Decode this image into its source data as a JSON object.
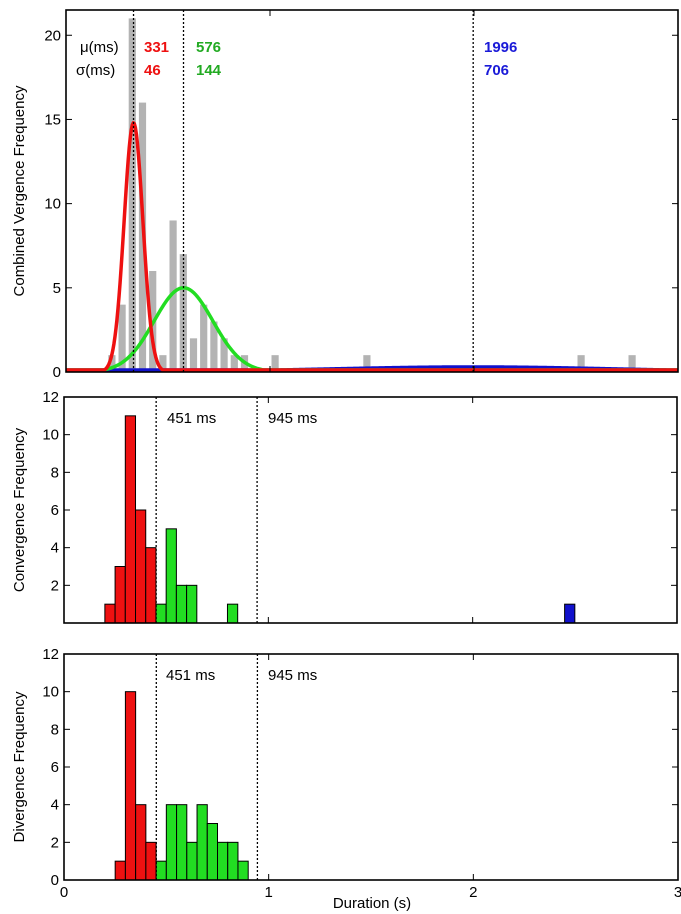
{
  "colors": {
    "red": "#ee1111",
    "green": "#22dd22",
    "blue": "#1111cc",
    "gray": "#b3b3b3",
    "stat_red": "#ee1111",
    "stat_green": "#22aa22",
    "stat_blue": "#1a1ad8"
  },
  "x_axis": {
    "label": "Duration (s)",
    "ticks": [
      0,
      1,
      2,
      3
    ],
    "tick_labels": [
      "0",
      "1",
      "2",
      "3"
    ],
    "xlim": [
      0,
      3
    ]
  },
  "chart_data": [
    {
      "type": "bar",
      "ylabel": "Combined Vergence Frequency",
      "xlim": [
        0,
        3
      ],
      "ylim": [
        0,
        21.5
      ],
      "yticks": [
        0,
        5,
        10,
        15,
        20
      ],
      "ytick_labels": [
        "0",
        "5",
        "10",
        "15",
        "20"
      ],
      "bin_width": 0.05,
      "histogram": {
        "x": [
          0.225,
          0.275,
          0.325,
          0.375,
          0.425,
          0.475,
          0.525,
          0.575,
          0.625,
          0.675,
          0.725,
          0.775,
          0.825,
          0.875,
          1.025,
          1.475,
          2.525,
          2.775
        ],
        "values": [
          1,
          4,
          21,
          16,
          6,
          1,
          9,
          7,
          2,
          4,
          3,
          2,
          1,
          1,
          1,
          1,
          1,
          1
        ]
      },
      "fits": [
        {
          "color_key": "red",
          "mu": 0.331,
          "sigma": 0.046,
          "peak": 14.8
        },
        {
          "color_key": "green",
          "mu": 0.576,
          "sigma": 0.144,
          "peak": 5.0
        },
        {
          "color_key": "blue",
          "mu": 1.996,
          "sigma": 0.706,
          "peak": 0.3
        }
      ],
      "vlines": [
        0.331,
        0.576,
        1.996
      ],
      "stats": {
        "mu_label": "μ(ms)",
        "sigma_label": "σ(ms)",
        "mu_values": [
          "331",
          "576",
          "1996"
        ],
        "sigma_values": [
          "46",
          "144",
          "706"
        ]
      }
    },
    {
      "type": "bar",
      "ylabel": "Convergence Frequency",
      "xlim": [
        0,
        3
      ],
      "ylim": [
        0,
        12
      ],
      "yticks": [
        2,
        4,
        6,
        8,
        10,
        12
      ],
      "ytick_labels": [
        "2",
        "4",
        "6",
        "8",
        "10",
        "12"
      ],
      "bin_width": 0.05,
      "series": [
        {
          "color_key": "red",
          "x": [
            0.225,
            0.275,
            0.325,
            0.375,
            0.425
          ],
          "values": [
            1,
            3,
            11,
            6,
            4
          ]
        },
        {
          "color_key": "green",
          "x": [
            0.475,
            0.525,
            0.575,
            0.625,
            0.825
          ],
          "values": [
            1,
            5,
            2,
            2,
            1
          ]
        },
        {
          "color_key": "blue",
          "x": [
            2.475
          ],
          "values": [
            1
          ]
        }
      ],
      "vlines": [
        0.451,
        0.945
      ],
      "vline_labels": [
        "451 ms",
        "945 ms"
      ]
    },
    {
      "type": "bar",
      "ylabel": "Divergence Frequency",
      "xlim": [
        0,
        3
      ],
      "ylim": [
        0,
        12
      ],
      "yticks": [
        0,
        2,
        4,
        6,
        8,
        10,
        12
      ],
      "ytick_labels": [
        "0",
        "2",
        "4",
        "6",
        "8",
        "10",
        "12"
      ],
      "bin_width": 0.05,
      "series": [
        {
          "color_key": "red",
          "x": [
            0.275,
            0.325,
            0.375,
            0.425
          ],
          "values": [
            1,
            10,
            4,
            2
          ]
        },
        {
          "color_key": "green",
          "x": [
            0.475,
            0.525,
            0.575,
            0.625,
            0.675,
            0.725,
            0.775,
            0.825,
            0.875
          ],
          "values": [
            1,
            4,
            4,
            2,
            4,
            3,
            2,
            2,
            1
          ]
        }
      ],
      "vlines": [
        0.451,
        0.945
      ],
      "vline_labels": [
        "451 ms",
        "945 ms"
      ]
    }
  ]
}
